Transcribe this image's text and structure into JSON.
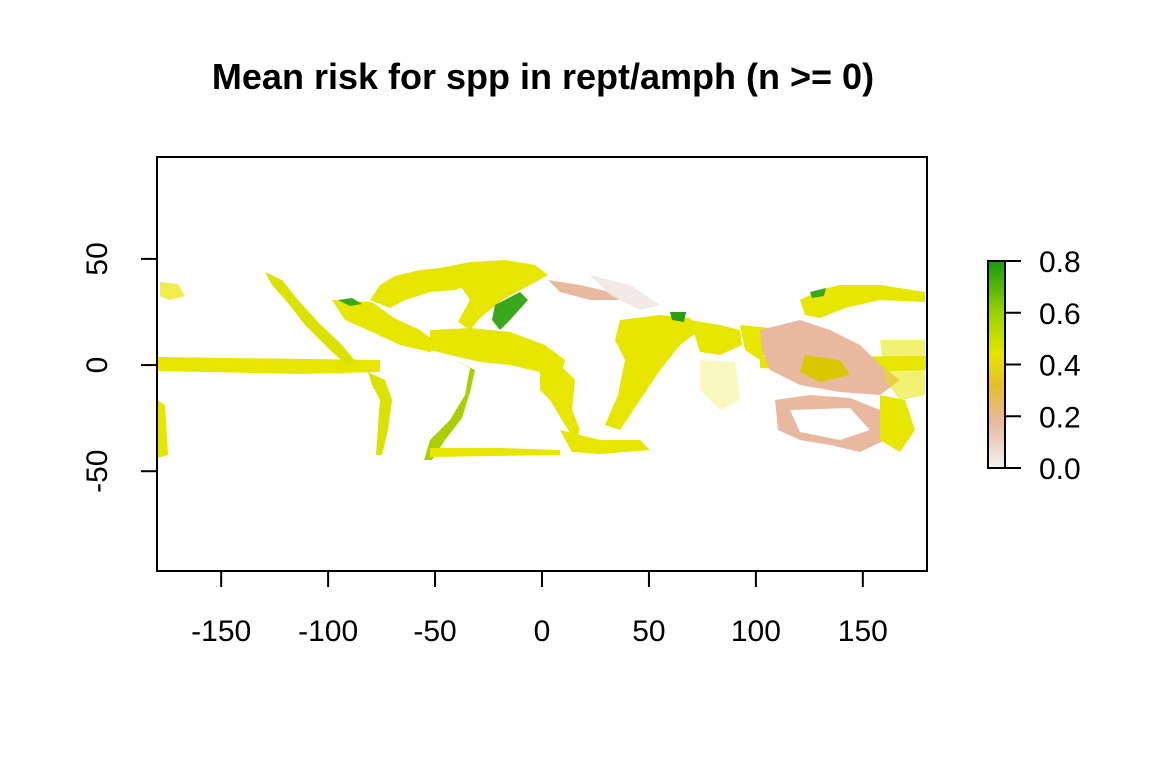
{
  "title": "Mean risk for spp in rept/amph (n >= 0)",
  "map": {
    "x_ticks": [
      "-150",
      "-100",
      "-50",
      "0",
      "50",
      "100",
      "150"
    ],
    "x_tick_values": [
      -150,
      -100,
      -50,
      0,
      50,
      100,
      150
    ],
    "y_ticks": [
      "50",
      "0",
      "-50"
    ],
    "y_tick_values": [
      50,
      0,
      -50
    ],
    "xlim": [
      -180,
      180
    ],
    "ylim": [
      -97,
      98
    ],
    "data_extent_lat": [
      -45,
      48
    ],
    "colors": {
      "low": "#f3e8e8",
      "mid_low": "#e9bfa5",
      "mid": "#e6e600",
      "mid_high": "#d7e300",
      "high": "#129b10"
    }
  },
  "legend": {
    "ticks": [
      "0.8",
      "0.6",
      "0.4",
      "0.2",
      "0.0"
    ],
    "tick_values": [
      0.8,
      0.6,
      0.4,
      0.2,
      0.0
    ],
    "range": [
      0,
      0.8
    ],
    "stops": [
      "#f2f2f2",
      "#e8b99f",
      "#e6bd2e",
      "#e6e600",
      "#9bd100",
      "#129b10"
    ]
  }
}
